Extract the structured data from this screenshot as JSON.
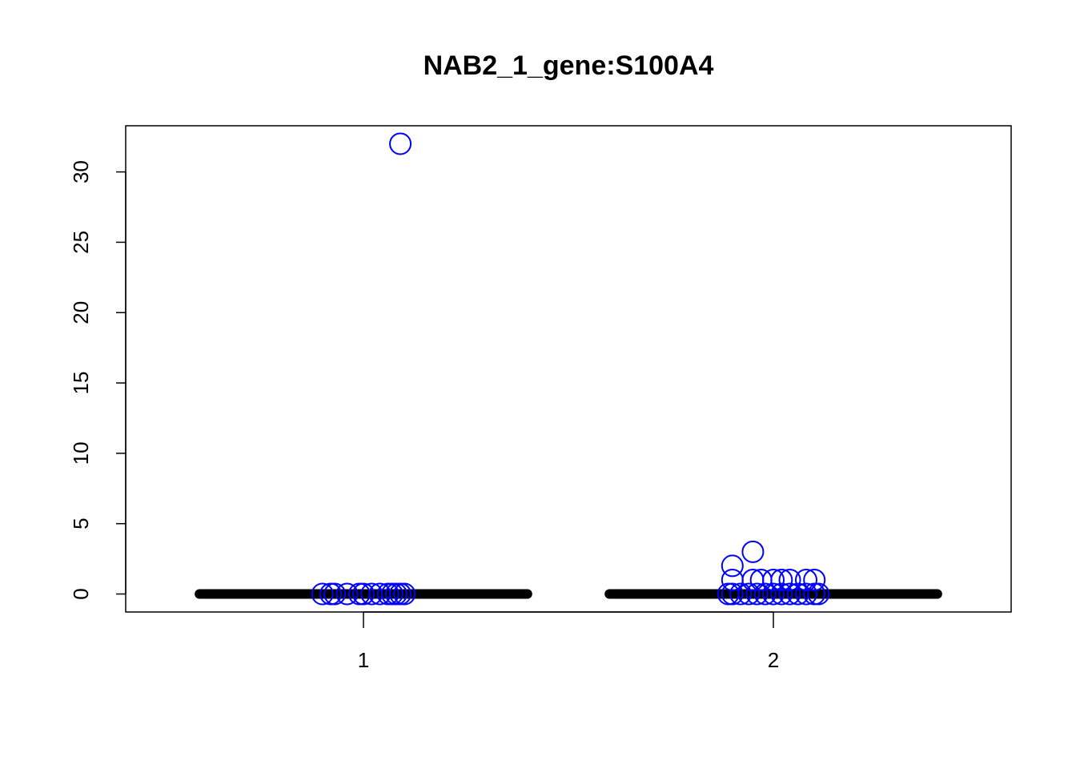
{
  "chart_data": {
    "type": "scatter",
    "title": "NAB2_1_gene:S100A4",
    "xlabel": "",
    "ylabel": "",
    "categories": [
      "1",
      "2"
    ],
    "xlim": [
      0.42,
      2.58
    ],
    "ylim": [
      -1.28,
      33.28
    ],
    "y_ticks": [
      0,
      5,
      10,
      15,
      20,
      25,
      30
    ],
    "grid": false,
    "legend": "none",
    "point_color": "#0000ff",
    "median_color": "#000000",
    "medians": [
      {
        "group": "1",
        "value": 0
      },
      {
        "group": "2",
        "value": 0
      }
    ],
    "series": [
      {
        "group": "1",
        "points": [
          {
            "x": 0.9,
            "y": 0
          },
          {
            "x": 0.92,
            "y": 0
          },
          {
            "x": 0.93,
            "y": 0
          },
          {
            "x": 0.96,
            "y": 0
          },
          {
            "x": 0.99,
            "y": 0
          },
          {
            "x": 1.0,
            "y": 0
          },
          {
            "x": 1.02,
            "y": 0
          },
          {
            "x": 1.04,
            "y": 0
          },
          {
            "x": 1.06,
            "y": 0
          },
          {
            "x": 1.07,
            "y": 0
          },
          {
            "x": 1.08,
            "y": 0
          },
          {
            "x": 1.09,
            "y": 0
          },
          {
            "x": 1.1,
            "y": 0
          },
          {
            "x": 1.09,
            "y": 32
          }
        ]
      },
      {
        "group": "2",
        "points": [
          {
            "x": 1.89,
            "y": 0
          },
          {
            "x": 1.9,
            "y": 0
          },
          {
            "x": 1.92,
            "y": 0
          },
          {
            "x": 1.94,
            "y": 0
          },
          {
            "x": 1.96,
            "y": 0
          },
          {
            "x": 1.98,
            "y": 0
          },
          {
            "x": 2.0,
            "y": 0
          },
          {
            "x": 2.02,
            "y": 0
          },
          {
            "x": 2.04,
            "y": 0
          },
          {
            "x": 2.06,
            "y": 0
          },
          {
            "x": 2.08,
            "y": 0
          },
          {
            "x": 2.1,
            "y": 0
          },
          {
            "x": 2.11,
            "y": 0
          },
          {
            "x": 1.9,
            "y": 1
          },
          {
            "x": 1.95,
            "y": 1
          },
          {
            "x": 1.97,
            "y": 1
          },
          {
            "x": 2.0,
            "y": 1
          },
          {
            "x": 2.02,
            "y": 1
          },
          {
            "x": 2.04,
            "y": 1
          },
          {
            "x": 2.08,
            "y": 1
          },
          {
            "x": 2.1,
            "y": 1
          },
          {
            "x": 1.9,
            "y": 2
          },
          {
            "x": 1.95,
            "y": 3
          }
        ]
      }
    ]
  }
}
